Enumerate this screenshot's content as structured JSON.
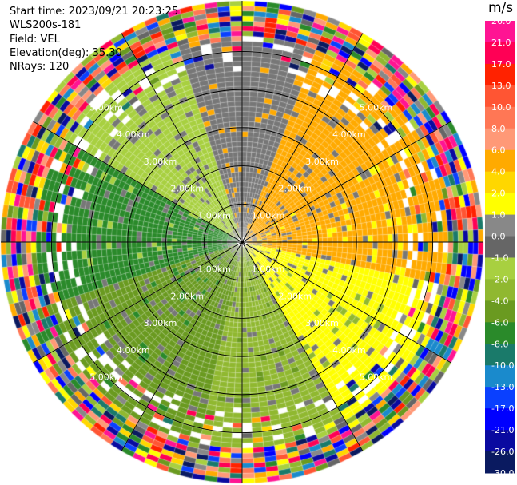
{
  "header": {
    "start_time": "Start time: 2023/09/21 20:23:25",
    "instrument": "WLS200s-181",
    "field": "Field: VEL",
    "elevation": "Elevation(deg): 35.30",
    "nrays": "NRays: 120"
  },
  "colorbar": {
    "unit": "m/s",
    "ticks": [
      "26.0",
      "21.0",
      "17.0",
      "13.0",
      "10.0",
      "8.0",
      "6.0",
      "4.0",
      "2.0",
      "1.0",
      "0.0",
      "-1.0",
      "-2.0",
      "-4.0",
      "-6.0",
      "-8.0",
      "-10.0",
      "-13.0",
      "-17.0",
      "-21.0",
      "-26.0",
      "-30.0"
    ],
    "colors": [
      "#ff1493",
      "#ff0055",
      "#ff2200",
      "#ff5533",
      "#ff7755",
      "#ff9977",
      "#ffaa00",
      "#ffd700",
      "#ffff00",
      "#888888",
      "#666666",
      "#a8d040",
      "#90b830",
      "#6a9a20",
      "#2a8a2a",
      "#1a7a6a",
      "#1a8acc",
      "#0a40ff",
      "#0000ff",
      "#0a0aa0",
      "#0a1a60"
    ]
  },
  "chart_data": {
    "type": "ppi",
    "range_rings_km": [
      "1.00km",
      "2.00km",
      "3.00km",
      "4.00km",
      "5.00km"
    ],
    "max_range_km": 5,
    "azimuth_lines_deg": [
      0,
      30,
      60,
      90,
      120,
      150,
      180,
      210,
      240,
      270,
      300,
      330
    ],
    "nrays": 120,
    "sector_pattern": [
      {
        "sector": "north-east",
        "dominant_velocity_ms": 4.0,
        "color": "#ffaa00"
      },
      {
        "sector": "east",
        "dominant_velocity_ms": 2.0,
        "color": "#ffff00"
      },
      {
        "sector": "south-east",
        "dominant_velocity_ms": 2.0,
        "color": "#ffff00"
      },
      {
        "sector": "south",
        "dominant_velocity_ms": -2.0,
        "color": "#90b830"
      },
      {
        "sector": "south-west",
        "dominant_velocity_ms": -4.0,
        "color": "#6a9a20"
      },
      {
        "sector": "west",
        "dominant_velocity_ms": -6.0,
        "color": "#2a8a2a"
      },
      {
        "sector": "north-west",
        "dominant_velocity_ms": -2.0,
        "color": "#a8d040"
      },
      {
        "sector": "north",
        "dominant_velocity_ms": 0.0,
        "color": "#666666"
      }
    ],
    "noise_beyond_km": 4.2
  }
}
